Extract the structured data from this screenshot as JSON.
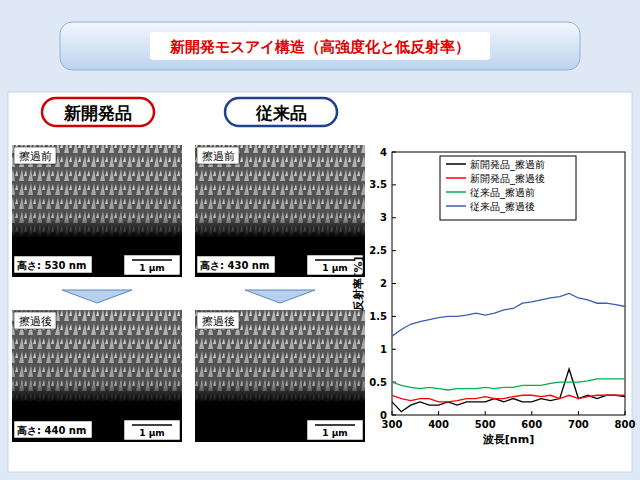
{
  "header": {
    "title": "新開発モスアイ構造（高強度化と低反射率）"
  },
  "panels": [
    {
      "label": "新開発品",
      "images": [
        {
          "state": "擦過前",
          "height": "高さ: 530 nm",
          "scale": "1 µm"
        },
        {
          "state": "擦過後",
          "height": "高さ: 440 nm",
          "scale": "1 µm"
        }
      ]
    },
    {
      "label": "従来品",
      "images": [
        {
          "state": "擦過前",
          "height": "高さ: 430 nm",
          "scale": "1 µm"
        },
        {
          "state": "擦過後",
          "scale": "1 µm"
        }
      ]
    }
  ],
  "chart_data": {
    "type": "line",
    "x_label": "波長[nm]",
    "y_label": "反射率[%]",
    "x": [
      300,
      320,
      340,
      360,
      380,
      400,
      420,
      440,
      460,
      480,
      500,
      520,
      540,
      560,
      580,
      600,
      620,
      640,
      660,
      680,
      700,
      720,
      740,
      760,
      780,
      800
    ],
    "xlim": [
      300,
      800
    ],
    "xticks": [
      300,
      400,
      500,
      600,
      700,
      800
    ],
    "ylim": [
      0,
      4
    ],
    "yticks": [
      0,
      0.5,
      1,
      1.5,
      2,
      2.5,
      3,
      3.5,
      4
    ],
    "grid": false,
    "legend": "upper right",
    "series": [
      {
        "name": "新開発品_擦過前",
        "color": "#000000",
        "values": [
          0.2,
          0.05,
          0.15,
          0.2,
          0.15,
          0.15,
          0.2,
          0.15,
          0.2,
          0.2,
          0.2,
          0.25,
          0.2,
          0.25,
          0.2,
          0.2,
          0.25,
          0.22,
          0.25,
          0.7,
          0.25,
          0.3,
          0.25,
          0.3,
          0.3,
          0.28
        ]
      },
      {
        "name": "新開発品_擦過後",
        "color": "#ff0000",
        "values": [
          0.3,
          0.25,
          0.22,
          0.25,
          0.25,
          0.2,
          0.2,
          0.22,
          0.25,
          0.25,
          0.28,
          0.25,
          0.25,
          0.28,
          0.3,
          0.3,
          0.28,
          0.3,
          0.25,
          0.3,
          0.25,
          0.28,
          0.3,
          0.3,
          0.3,
          0.3
        ]
      },
      {
        "name": "従来品_擦過前",
        "color": "#00b050",
        "values": [
          0.5,
          0.45,
          0.42,
          0.4,
          0.42,
          0.4,
          0.38,
          0.4,
          0.4,
          0.4,
          0.42,
          0.4,
          0.42,
          0.42,
          0.45,
          0.45,
          0.45,
          0.48,
          0.5,
          0.5,
          0.5,
          0.52,
          0.55,
          0.55,
          0.55,
          0.55
        ]
      },
      {
        "name": "従来品_擦過後",
        "color": "#3a5fb0",
        "values": [
          1.2,
          1.3,
          1.38,
          1.42,
          1.45,
          1.48,
          1.5,
          1.5,
          1.52,
          1.55,
          1.52,
          1.55,
          1.6,
          1.62,
          1.7,
          1.72,
          1.75,
          1.78,
          1.8,
          1.85,
          1.78,
          1.75,
          1.7,
          1.7,
          1.68,
          1.65
        ]
      }
    ]
  }
}
